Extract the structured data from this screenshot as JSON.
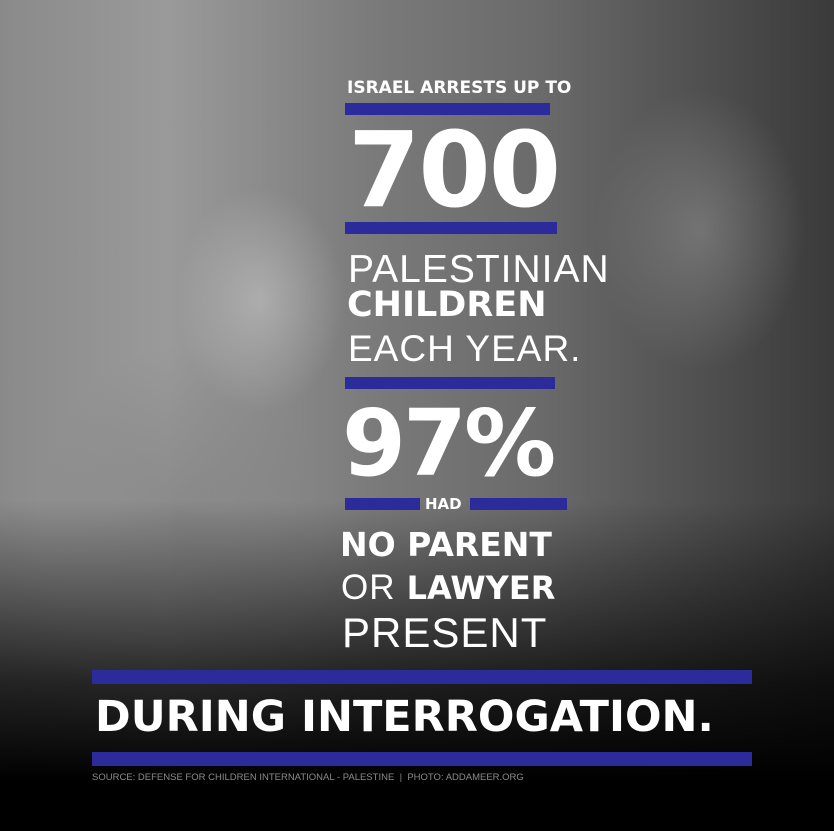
{
  "headline_top": "ISRAEL ARRESTS UP TO",
  "big_number": "700",
  "line_palestinian": "PALESTINIAN",
  "line_children": "CHILDREN",
  "line_each_year": "EACH YEAR.",
  "percent": "97%",
  "line_had": "HAD",
  "line_no_parent": "NO PARENT",
  "line_or": "OR",
  "line_lawyer": "LAWYER",
  "line_present": "PRESENT",
  "line_during": "DURING INTERROGATION.",
  "footer": {
    "source": "SOURCE: DEFENSE FOR CHILDREN INTERNATIONAL - PALESTINE",
    "separator": "|",
    "photo": "PHOTO: ADDAMEER.ORG"
  },
  "colors": {
    "accent_bar": "#2b2b9c",
    "text": "#ffffff"
  }
}
